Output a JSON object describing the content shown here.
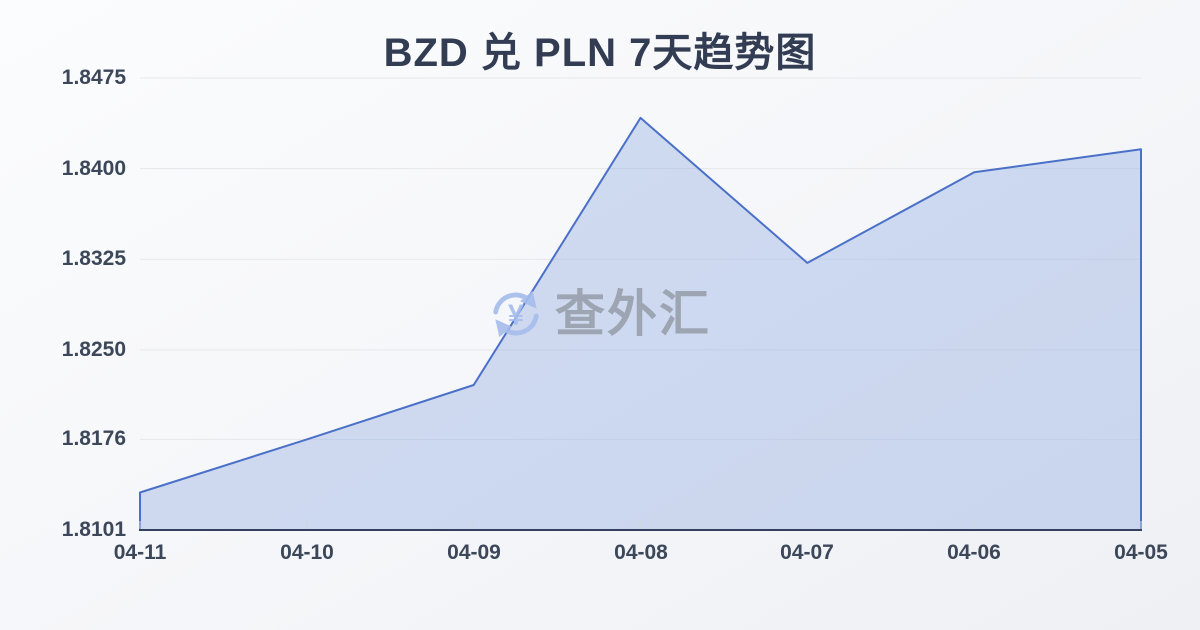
{
  "title": "BZD 兑 PLN 7天趋势图",
  "watermark": {
    "text": "查外汇",
    "icon": "currency-exchange-icon",
    "icon_symbol": "¥"
  },
  "colors": {
    "line": "#4b70c8",
    "area_fill": "rgba(124,157,223,0.33)",
    "axis_line": "#33415e",
    "gridline": "#e5e7eb",
    "label_text": "#3c4759",
    "title_text": "#323c52",
    "watermark_text": "#9aa1ad",
    "watermark_icon": "#a7bdec"
  },
  "chart_data": {
    "type": "area",
    "title": "BZD 兑 PLN 7天趋势图",
    "x": [
      "04-11",
      "04-10",
      "04-09",
      "04-08",
      "04-07",
      "04-06",
      "04-05"
    ],
    "series": [
      {
        "name": "BZD 兑 PLN",
        "values": [
          1.8132,
          1.8176,
          1.8221,
          1.8442,
          1.8322,
          1.8397,
          1.8416
        ]
      }
    ],
    "xlabel": "",
    "ylabel": "",
    "ylim": [
      1.8101,
      1.8475
    ],
    "ytick_labels": [
      "1.8475",
      "1.8400",
      "1.8325",
      "1.8250",
      "1.8176",
      "1.8101"
    ],
    "grid": "horizontal-only",
    "legend": "none"
  }
}
